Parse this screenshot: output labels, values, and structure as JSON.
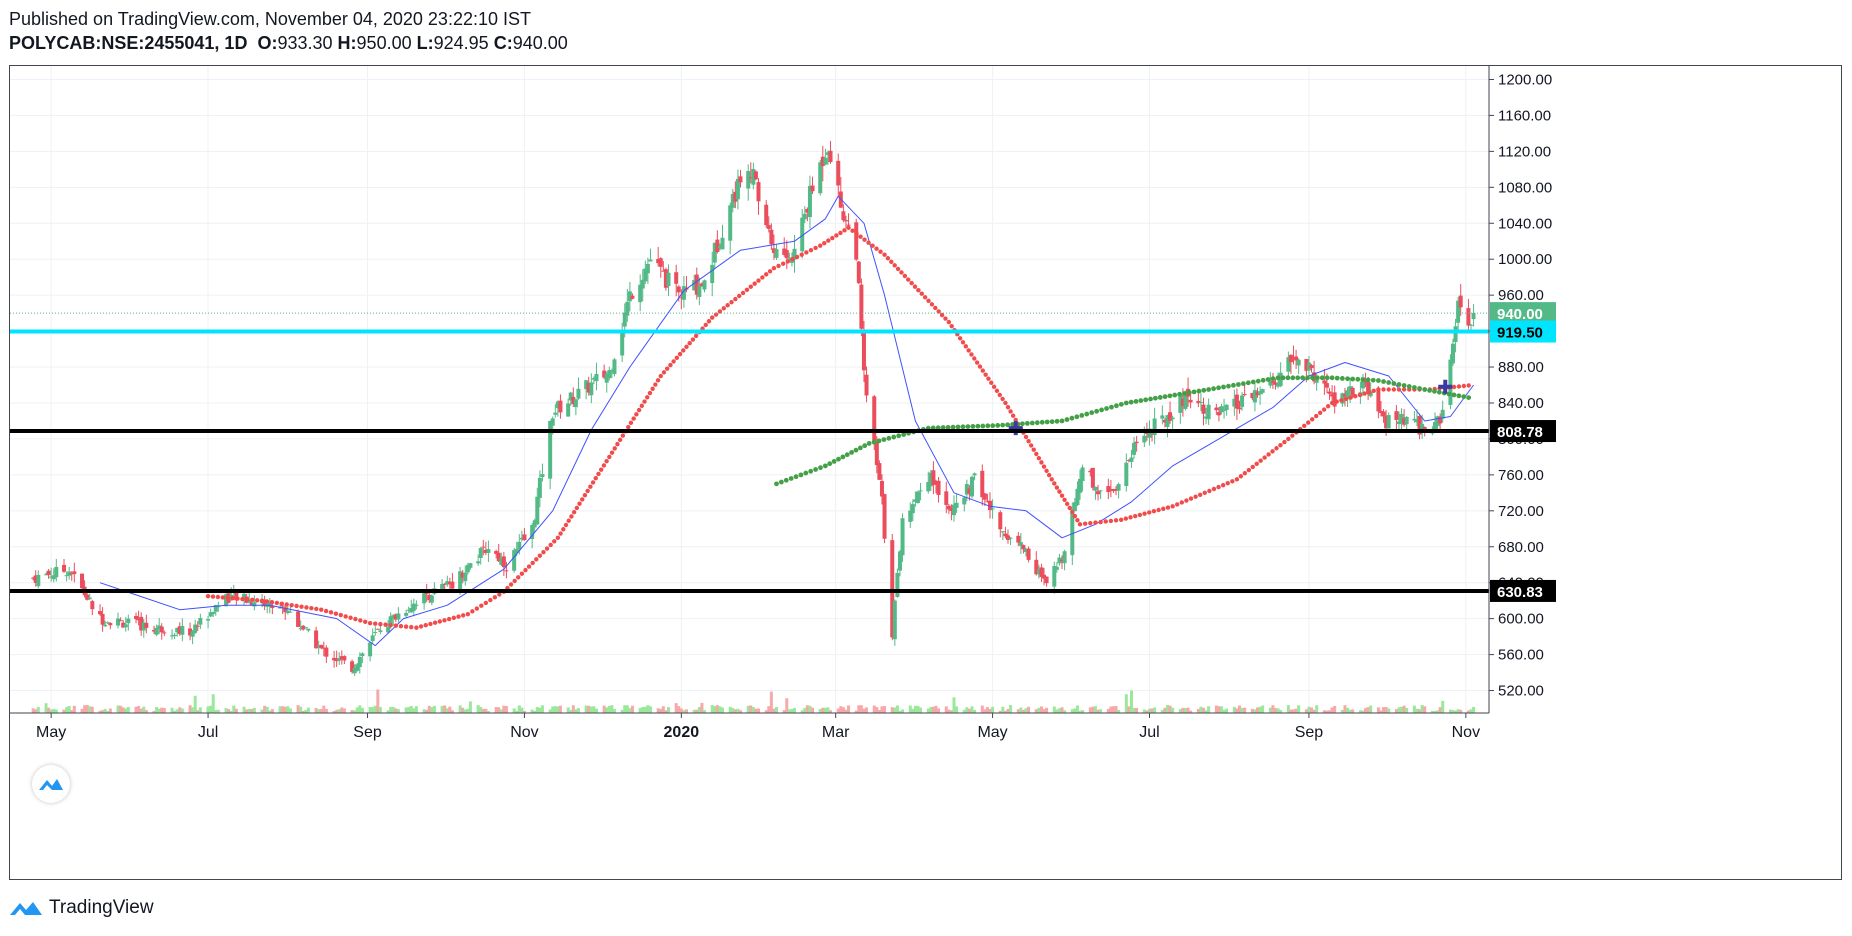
{
  "header": {
    "published": "Published on TradingView.com, November 04, 2020 23:22:10 IST",
    "symbol": "POLYCAB:NSE:2455041, 1D",
    "o_label": "O:",
    "o_value": "933.30",
    "h_label": "H:",
    "h_value": "950.00",
    "l_label": "L:",
    "l_value": "924.95",
    "c_label": "C:",
    "c_value": "940.00"
  },
  "footer": {
    "brand": "TradingView"
  },
  "colors": {
    "up": "#53b987",
    "down": "#eb4d5c",
    "ma_fast": "#3f51ff",
    "ma_red": "#f24b4b",
    "ma_green": "#43a047",
    "cyan": "#00e5ff",
    "black": "#000000",
    "grid": "#eef1f5",
    "last_price": "#53b987",
    "volume_up": "#9be89b",
    "volume_down": "#f7a8a8"
  },
  "chart_data": {
    "type": "candlestick",
    "symbol": "POLYCAB:NSE:2455041",
    "interval": "1D",
    "y_axis": {
      "ticks": [
        520,
        560,
        600,
        640,
        680,
        720,
        760,
        800,
        840,
        880,
        920,
        960,
        1000,
        1040,
        1080,
        1120,
        1160,
        1200
      ],
      "tick_labels": [
        "520.00",
        "560.00",
        "600.00",
        "640.00",
        "680.00",
        "720.00",
        "760.00",
        "800.00",
        "840.00",
        "880.00",
        "920.00",
        "960.00",
        "1000.00",
        "1040.00",
        "1080.00",
        "1120.00",
        "1160.00",
        "1200.00"
      ],
      "range": [
        495,
        1215
      ]
    },
    "x_axis": {
      "labels": [
        "May",
        "Jul",
        "Sep",
        "Nov",
        "2020",
        "Mar",
        "May",
        "Jul",
        "Sep",
        "Nov"
      ],
      "bold_labels": [
        "2020"
      ],
      "range": [
        "2019-04-15",
        "2020-11-10"
      ]
    },
    "horizontal_lines": [
      {
        "value": 919.5,
        "label": "919.50",
        "color": "#00e5ff"
      },
      {
        "value": 808.78,
        "label": "808.78",
        "color": "#000000"
      },
      {
        "value": 630.83,
        "label": "630.83",
        "color": "#000000"
      }
    ],
    "last_price": {
      "value": 940.0,
      "label": "940.00"
    },
    "price_path": [
      [
        "2019-04-24",
        645
      ],
      [
        "2019-05-08",
        655
      ],
      [
        "2019-05-20",
        600
      ],
      [
        "2019-06-10",
        590
      ],
      [
        "2019-06-24",
        585
      ],
      [
        "2019-07-08",
        625
      ],
      [
        "2019-07-22",
        618
      ],
      [
        "2019-08-01",
        610
      ],
      [
        "2019-08-14",
        565
      ],
      [
        "2019-08-26",
        545
      ],
      [
        "2019-09-06",
        590
      ],
      [
        "2019-09-20",
        620
      ],
      [
        "2019-10-04",
        640
      ],
      [
        "2019-10-18",
        680
      ],
      [
        "2019-10-25",
        660
      ],
      [
        "2019-11-04",
        700
      ],
      [
        "2019-11-12",
        830
      ],
      [
        "2019-11-22",
        850
      ],
      [
        "2019-12-04",
        875
      ],
      [
        "2019-12-12",
        960
      ],
      [
        "2019-12-20",
        1000
      ],
      [
        "2019-12-31",
        960
      ],
      [
        "2020-01-10",
        975
      ],
      [
        "2020-01-20",
        1060
      ],
      [
        "2020-01-27",
        1110
      ],
      [
        "2020-02-06",
        1010
      ],
      [
        "2020-02-13",
        1000
      ],
      [
        "2020-02-20",
        1070
      ],
      [
        "2020-02-27",
        1130
      ],
      [
        "2020-03-03",
        1060
      ],
      [
        "2020-03-09",
        1010
      ],
      [
        "2020-03-12",
        870
      ],
      [
        "2020-03-19",
        730
      ],
      [
        "2020-03-23",
        585
      ],
      [
        "2020-03-27",
        710
      ],
      [
        "2020-04-06",
        760
      ],
      [
        "2020-04-16",
        720
      ],
      [
        "2020-04-24",
        755
      ],
      [
        "2020-05-04",
        700
      ],
      [
        "2020-05-13",
        680
      ],
      [
        "2020-05-22",
        635
      ],
      [
        "2020-05-28",
        670
      ],
      [
        "2020-06-05",
        770
      ],
      [
        "2020-06-12",
        740
      ],
      [
        "2020-06-19",
        750
      ],
      [
        "2020-06-26",
        800
      ],
      [
        "2020-07-06",
        820
      ],
      [
        "2020-07-16",
        850
      ],
      [
        "2020-07-27",
        825
      ],
      [
        "2020-08-06",
        840
      ],
      [
        "2020-08-18",
        860
      ],
      [
        "2020-08-26",
        890
      ],
      [
        "2020-09-04",
        870
      ],
      [
        "2020-09-11",
        840
      ],
      [
        "2020-09-22",
        860
      ],
      [
        "2020-09-30",
        820
      ],
      [
        "2020-10-08",
        820
      ],
      [
        "2020-10-16",
        810
      ],
      [
        "2020-10-22",
        820
      ],
      [
        "2020-10-26",
        880
      ],
      [
        "2020-10-29",
        950
      ],
      [
        "2020-11-02",
        920
      ],
      [
        "2020-11-04",
        940
      ]
    ],
    "last_bar": {
      "date": "2020-11-04",
      "open": 933.3,
      "high": 950.0,
      "low": 924.95,
      "close": 940.0
    },
    "ma_fast": [
      [
        "2019-05-20",
        640
      ],
      [
        "2019-06-20",
        610
      ],
      [
        "2019-07-08",
        615
      ],
      [
        "2019-07-25",
        615
      ],
      [
        "2019-08-20",
        600
      ],
      [
        "2019-09-04",
        570
      ],
      [
        "2019-09-15",
        600
      ],
      [
        "2019-10-02",
        615
      ],
      [
        "2019-10-24",
        655
      ],
      [
        "2019-11-12",
        720
      ],
      [
        "2019-11-27",
        810
      ],
      [
        "2019-12-12",
        880
      ],
      [
        "2020-01-02",
        965
      ],
      [
        "2020-01-24",
        1010
      ],
      [
        "2020-02-14",
        1020
      ],
      [
        "2020-02-26",
        1045
      ],
      [
        "2020-03-02",
        1070
      ],
      [
        "2020-03-12",
        1040
      ],
      [
        "2020-03-20",
        960
      ],
      [
        "2020-04-01",
        820
      ],
      [
        "2020-04-16",
        740
      ],
      [
        "2020-04-30",
        725
      ],
      [
        "2020-05-14",
        720
      ],
      [
        "2020-05-28",
        690
      ],
      [
        "2020-06-10",
        705
      ],
      [
        "2020-06-24",
        730
      ],
      [
        "2020-07-10",
        770
      ],
      [
        "2020-07-28",
        800
      ],
      [
        "2020-08-18",
        835
      ],
      [
        "2020-09-01",
        870
      ],
      [
        "2020-09-15",
        885
      ],
      [
        "2020-10-02",
        870
      ],
      [
        "2020-10-16",
        820
      ],
      [
        "2020-10-26",
        825
      ],
      [
        "2020-11-04",
        860
      ]
    ],
    "ma_red": [
      [
        "2019-07-01",
        625
      ],
      [
        "2019-07-22",
        620
      ],
      [
        "2019-08-14",
        610
      ],
      [
        "2019-09-02",
        595
      ],
      [
        "2019-09-20",
        590
      ],
      [
        "2019-10-10",
        605
      ],
      [
        "2019-10-24",
        630
      ],
      [
        "2019-11-14",
        690
      ],
      [
        "2019-12-04",
        780
      ],
      [
        "2019-12-24",
        870
      ],
      [
        "2020-01-13",
        935
      ],
      [
        "2020-02-06",
        990
      ],
      [
        "2020-02-24",
        1015
      ],
      [
        "2020-03-06",
        1035
      ],
      [
        "2020-03-20",
        1005
      ],
      [
        "2020-04-14",
        930
      ],
      [
        "2020-05-06",
        840
      ],
      [
        "2020-05-24",
        755
      ],
      [
        "2020-06-04",
        705
      ],
      [
        "2020-06-20",
        710
      ],
      [
        "2020-07-10",
        725
      ],
      [
        "2020-08-04",
        755
      ],
      [
        "2020-08-24",
        800
      ],
      [
        "2020-09-10",
        840
      ],
      [
        "2020-09-28",
        855
      ],
      [
        "2020-10-18",
        855
      ],
      [
        "2020-11-04",
        860
      ]
    ],
    "ma_green": [
      [
        "2020-02-07",
        750
      ],
      [
        "2020-02-26",
        770
      ],
      [
        "2020-03-14",
        795
      ],
      [
        "2020-04-06",
        812
      ],
      [
        "2020-05-03",
        815
      ],
      [
        "2020-05-28",
        820
      ],
      [
        "2020-06-22",
        840
      ],
      [
        "2020-07-24",
        855
      ],
      [
        "2020-08-20",
        868
      ],
      [
        "2020-09-10",
        868
      ],
      [
        "2020-09-28",
        865
      ],
      [
        "2020-10-16",
        855
      ],
      [
        "2020-11-04",
        845
      ]
    ],
    "markers": [
      {
        "date": "2020-05-10",
        "value": 812,
        "shape": "cross"
      },
      {
        "date": "2020-10-24",
        "value": 858,
        "shape": "cross"
      }
    ]
  }
}
